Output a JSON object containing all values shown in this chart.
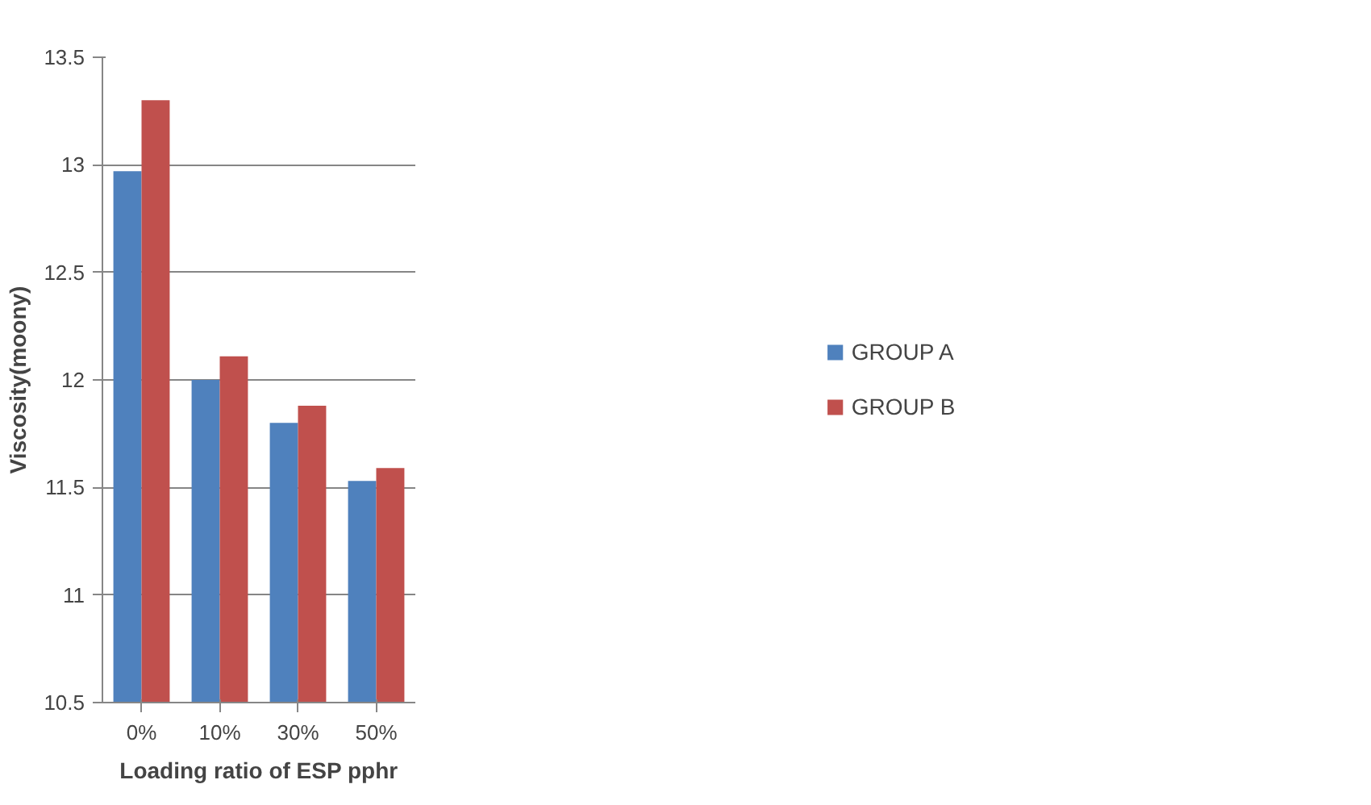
{
  "chart_data": {
    "type": "bar",
    "xlabel": "Loading ratio of ESP pphr",
    "ylabel": "Viscosity(moony)",
    "categories": [
      "0%",
      "10%",
      "30%",
      "50%"
    ],
    "series": [
      {
        "name": "GROUP A",
        "color": "#4f81bd",
        "values": [
          12.97,
          12.0,
          11.8,
          11.53
        ]
      },
      {
        "name": "GROUP B",
        "color": "#c0504d",
        "values": [
          13.3,
          12.11,
          11.88,
          11.59
        ]
      }
    ],
    "ylim": [
      10.5,
      13.5
    ],
    "yticks": [
      10.5,
      11,
      11.5,
      12,
      12.5,
      13,
      13.5
    ],
    "grid": "y",
    "legend": "right"
  }
}
